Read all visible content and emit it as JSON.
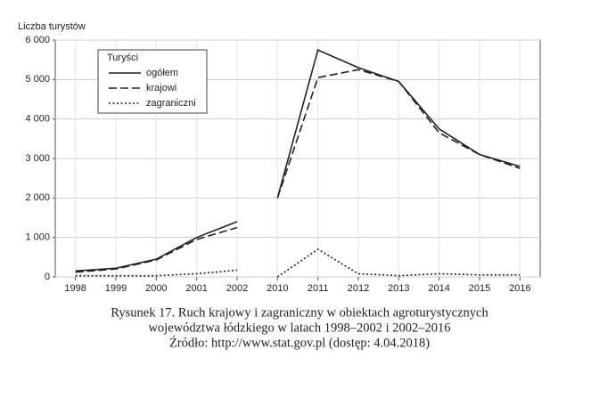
{
  "chart_data": {
    "type": "line",
    "y_label": "Liczba turystów",
    "legend_title": "Turyści",
    "categories": [
      "1998",
      "1999",
      "2000",
      "2001",
      "2002",
      "2010",
      "2011",
      "2012",
      "2013",
      "2014",
      "2015",
      "2016"
    ],
    "series": [
      {
        "name": "ogółem",
        "color": "#222222",
        "dash": "solid",
        "values": [
          150,
          220,
          450,
          1000,
          1400,
          2000,
          5750,
          5300,
          4950,
          3750,
          3100,
          2800
        ]
      },
      {
        "name": "krajowi",
        "color": "#222222",
        "dash": "dashed",
        "values": [
          120,
          200,
          430,
          950,
          1250,
          2000,
          5050,
          5250,
          4950,
          3650,
          3100,
          2750
        ]
      },
      {
        "name": "zagraniczni",
        "color": "#222222",
        "dash": "dotted",
        "values": [
          30,
          30,
          30,
          80,
          170,
          0,
          700,
          80,
          30,
          80,
          50,
          50
        ]
      }
    ],
    "ylim": [
      0,
      6000
    ],
    "yticks": [
      0,
      {
        "value": 1000,
        "label": "1 000"
      },
      {
        "value": 2000,
        "label": "2 000"
      },
      {
        "value": 3000,
        "label": "3 000"
      },
      {
        "value": 4000,
        "label": "4 000"
      },
      {
        "value": 5000,
        "label": "5 000"
      },
      {
        "value": 6000,
        "label": "6 000"
      }
    ],
    "grid": true,
    "legend_position": "upper left",
    "caption": [
      "Rysunek 17. Ruch krajowy i zagraniczny w obiektach agroturystycznych",
      "województwa łódzkiego w latach 1998–2002 i 2002–2016",
      "Źródło: http://www.stat.gov.pl (dostęp: 4.04.2018)"
    ]
  }
}
